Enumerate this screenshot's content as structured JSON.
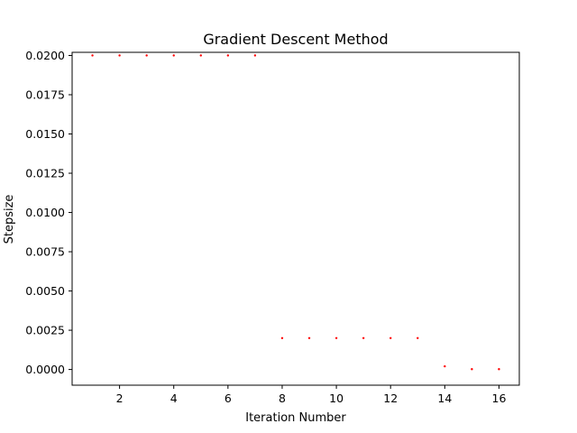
{
  "chart_data": {
    "type": "scatter",
    "title": "Gradient Descent Method",
    "xlabel": "Iteration Number",
    "ylabel": "Stepsize",
    "xlim": [
      0.25,
      16.75
    ],
    "ylim": [
      -0.001,
      0.0202
    ],
    "x_ticks": [
      2,
      4,
      6,
      8,
      10,
      12,
      14,
      16
    ],
    "x_tick_labels": [
      "2",
      "4",
      "6",
      "8",
      "10",
      "12",
      "14",
      "16"
    ],
    "y_ticks": [
      0.0,
      0.0025,
      0.005,
      0.0075,
      0.01,
      0.0125,
      0.015,
      0.0175,
      0.02
    ],
    "y_tick_labels": [
      "0.0000",
      "0.0025",
      "0.0050",
      "0.0075",
      "0.0100",
      "0.0125",
      "0.0150",
      "0.0175",
      "0.0200"
    ],
    "grid": false,
    "marker_color": "#ff0000",
    "x": [
      1,
      2,
      3,
      4,
      5,
      6,
      7,
      8,
      9,
      10,
      11,
      12,
      13,
      14,
      15,
      16
    ],
    "y": [
      0.02,
      0.02,
      0.02,
      0.02,
      0.02,
      0.02,
      0.02,
      0.002,
      0.002,
      0.002,
      0.002,
      0.002,
      0.002,
      0.0002,
      2e-05,
      2e-05
    ]
  }
}
